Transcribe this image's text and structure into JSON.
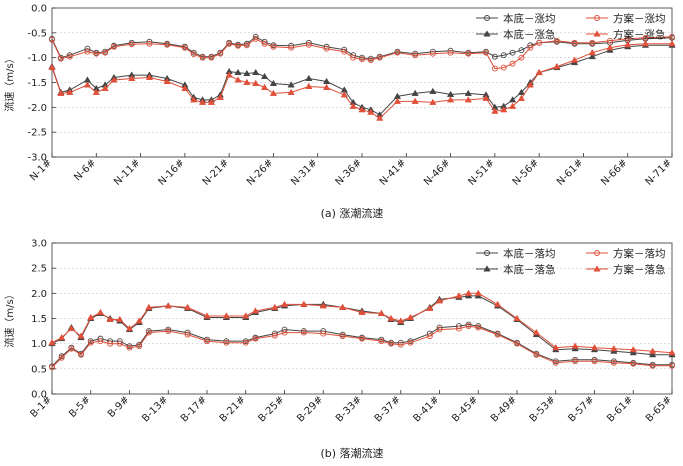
{
  "figures": [
    {
      "chart_data": {
        "type": "line",
        "ylabel": "流速（m/s）",
        "ylim": [
          -3.0,
          0.0
        ],
        "yticks": [
          "0.0",
          "-0.5",
          "-1.0",
          "-1.5",
          "-2.0",
          "-2.5",
          "-3.0"
        ],
        "ytick_values": [
          0.0,
          -0.5,
          -1.0,
          -1.5,
          -2.0,
          -2.5,
          -3.0
        ],
        "xlim": [
          1,
          71
        ],
        "x_tick_labels": [
          "N-1#",
          "N-6#",
          "N-11#",
          "N-16#",
          "N-21#",
          "N-26#",
          "N-31#",
          "N-36#",
          "N-41#",
          "N-46#",
          "N-51#",
          "N-56#",
          "N-61#",
          "N-66#",
          "N-71#"
        ],
        "x_tick_positions": [
          1,
          6,
          11,
          16,
          21,
          26,
          31,
          36,
          41,
          46,
          51,
          56,
          61,
          66,
          71
        ],
        "caption": "(a)  涨潮流速",
        "legend": {
          "position": "top-right",
          "columns": 2
        },
        "grid": true,
        "series": [
          {
            "name": "本底－涨均",
            "color": "#444444",
            "marker": "circle",
            "x": [
              1,
              2,
              3,
              5,
              6,
              7,
              8,
              10,
              12,
              14,
              16,
              17,
              18,
              19,
              20,
              21,
              22,
              23,
              24,
              25,
              26,
              28,
              30,
              32,
              34,
              35,
              36,
              37,
              38,
              40,
              42,
              44,
              46,
              48,
              50,
              51,
              52,
              53,
              54,
              55,
              56,
              58,
              60,
              62,
              64,
              66,
              68,
              71
            ],
            "y": [
              -0.62,
              -1.0,
              -0.95,
              -0.82,
              -0.9,
              -0.88,
              -0.76,
              -0.7,
              -0.68,
              -0.72,
              -0.78,
              -0.9,
              -0.98,
              -0.98,
              -0.9,
              -0.7,
              -0.74,
              -0.72,
              -0.58,
              -0.68,
              -0.75,
              -0.76,
              -0.7,
              -0.78,
              -0.84,
              -0.95,
              -1.0,
              -1.02,
              -0.98,
              -0.88,
              -0.92,
              -0.88,
              -0.86,
              -0.9,
              -0.88,
              -0.98,
              -0.95,
              -0.9,
              -0.85,
              -0.75,
              -0.7,
              -0.68,
              -0.72,
              -0.72,
              -0.7,
              -0.65,
              -0.62,
              -0.6
            ]
          },
          {
            "name": "本底－涨急",
            "color": "#444444",
            "marker": "triangle",
            "x": [
              1,
              2,
              3,
              5,
              6,
              7,
              8,
              10,
              12,
              14,
              16,
              17,
              18,
              19,
              20,
              21,
              22,
              23,
              24,
              25,
              26,
              28,
              30,
              32,
              34,
              35,
              36,
              37,
              38,
              40,
              42,
              44,
              46,
              48,
              50,
              51,
              52,
              53,
              54,
              55,
              56,
              58,
              60,
              62,
              64,
              66,
              68,
              71
            ],
            "y": [
              -1.18,
              -1.7,
              -1.65,
              -1.45,
              -1.62,
              -1.55,
              -1.4,
              -1.35,
              -1.35,
              -1.42,
              -1.55,
              -1.8,
              -1.85,
              -1.85,
              -1.75,
              -1.28,
              -1.3,
              -1.32,
              -1.3,
              -1.38,
              -1.52,
              -1.55,
              -1.42,
              -1.48,
              -1.65,
              -1.9,
              -2.0,
              -2.05,
              -2.15,
              -1.78,
              -1.72,
              -1.68,
              -1.74,
              -1.72,
              -1.75,
              -2.0,
              -1.98,
              -1.85,
              -1.7,
              -1.5,
              -1.3,
              -1.2,
              -1.1,
              -0.98,
              -0.85,
              -0.78,
              -0.75,
              -0.75
            ]
          },
          {
            "name": "方案－涨均",
            "color": "#e0503a",
            "marker": "circle",
            "x": [
              1,
              2,
              3,
              5,
              6,
              7,
              8,
              10,
              12,
              14,
              16,
              17,
              18,
              19,
              20,
              21,
              22,
              23,
              24,
              25,
              26,
              28,
              30,
              32,
              34,
              35,
              36,
              37,
              38,
              40,
              42,
              44,
              46,
              48,
              50,
              51,
              52,
              53,
              54,
              55,
              56,
              58,
              60,
              62,
              64,
              66,
              68,
              71
            ],
            "y": [
              -0.64,
              -1.02,
              -0.98,
              -0.88,
              -0.92,
              -0.9,
              -0.78,
              -0.73,
              -0.72,
              -0.74,
              -0.8,
              -0.93,
              -1.0,
              -1.0,
              -0.92,
              -0.72,
              -0.76,
              -0.75,
              -0.62,
              -0.72,
              -0.78,
              -0.8,
              -0.74,
              -0.82,
              -0.88,
              -1.0,
              -1.03,
              -1.05,
              -1.0,
              -0.9,
              -0.95,
              -0.92,
              -0.9,
              -0.92,
              -0.9,
              -1.22,
              -1.2,
              -1.12,
              -1.0,
              -0.8,
              -0.7,
              -0.66,
              -0.7,
              -0.7,
              -0.66,
              -0.62,
              -0.6,
              -0.58
            ]
          },
          {
            "name": "方案－涨急",
            "color": "#e0503a",
            "marker": "triangle",
            "x": [
              1,
              2,
              3,
              5,
              6,
              7,
              8,
              10,
              12,
              14,
              16,
              17,
              18,
              19,
              20,
              21,
              22,
              23,
              24,
              25,
              26,
              28,
              30,
              32,
              34,
              35,
              36,
              37,
              38,
              40,
              42,
              44,
              46,
              48,
              50,
              51,
              52,
              53,
              54,
              55,
              56,
              58,
              60,
              62,
              64,
              66,
              68,
              71
            ],
            "y": [
              -1.2,
              -1.72,
              -1.7,
              -1.55,
              -1.7,
              -1.62,
              -1.45,
              -1.42,
              -1.4,
              -1.48,
              -1.62,
              -1.85,
              -1.9,
              -1.9,
              -1.8,
              -1.35,
              -1.45,
              -1.5,
              -1.52,
              -1.6,
              -1.72,
              -1.7,
              -1.58,
              -1.6,
              -1.75,
              -1.98,
              -2.05,
              -2.1,
              -2.22,
              -1.88,
              -1.88,
              -1.9,
              -1.85,
              -1.85,
              -1.82,
              -2.08,
              -2.05,
              -1.98,
              -1.82,
              -1.55,
              -1.3,
              -1.18,
              -1.05,
              -0.9,
              -0.8,
              -0.74,
              -0.72,
              -0.72
            ]
          }
        ]
      }
    },
    {
      "chart_data": {
        "type": "line",
        "ylabel": "流速（m/s）",
        "ylim": [
          0.0,
          3.0
        ],
        "yticks": [
          "0.0",
          "0.5",
          "1.0",
          "1.5",
          "2.0",
          "2.5",
          "3.0"
        ],
        "ytick_values": [
          0.0,
          0.5,
          1.0,
          1.5,
          2.0,
          2.5,
          3.0
        ],
        "xlim": [
          1,
          65
        ],
        "x_tick_labels": [
          "B-1#",
          "B-5#",
          "B-9#",
          "B-13#",
          "B-17#",
          "B-21#",
          "B-25#",
          "B-29#",
          "B-33#",
          "B-37#",
          "B-41#",
          "B-45#",
          "B-49#",
          "B-53#",
          "B-57#",
          "B-61#",
          "B-65#"
        ],
        "x_tick_positions": [
          1,
          5,
          9,
          13,
          17,
          21,
          25,
          29,
          33,
          37,
          41,
          45,
          49,
          53,
          57,
          61,
          65
        ],
        "caption": "(b)  落潮流速",
        "legend": {
          "position": "top-right",
          "columns": 2
        },
        "grid": true,
        "series": [
          {
            "name": "本底－落均",
            "color": "#444444",
            "marker": "circle",
            "x": [
              1,
              2,
              3,
              4,
              5,
              6,
              7,
              8,
              9,
              10,
              11,
              13,
              15,
              17,
              19,
              21,
              22,
              24,
              25,
              27,
              29,
              31,
              33,
              35,
              36,
              37,
              38,
              40,
              41,
              43,
              44,
              45,
              47,
              49,
              51,
              53,
              55,
              57,
              59,
              61,
              63,
              65
            ],
            "y": [
              0.55,
              0.75,
              0.92,
              0.8,
              1.05,
              1.1,
              1.05,
              1.05,
              0.95,
              0.98,
              1.25,
              1.28,
              1.22,
              1.08,
              1.05,
              1.05,
              1.12,
              1.2,
              1.28,
              1.25,
              1.25,
              1.18,
              1.12,
              1.08,
              1.02,
              1.02,
              1.05,
              1.2,
              1.32,
              1.35,
              1.38,
              1.35,
              1.2,
              1.02,
              0.8,
              0.65,
              0.68,
              0.68,
              0.65,
              0.62,
              0.58,
              0.58
            ]
          },
          {
            "name": "本底－落急",
            "color": "#444444",
            "marker": "triangle",
            "x": [
              1,
              2,
              3,
              4,
              5,
              6,
              7,
              8,
              9,
              10,
              11,
              13,
              15,
              17,
              19,
              21,
              22,
              24,
              25,
              27,
              29,
              31,
              33,
              35,
              36,
              37,
              38,
              40,
              41,
              43,
              44,
              45,
              47,
              49,
              51,
              53,
              55,
              57,
              59,
              61,
              63,
              65
            ],
            "y": [
              1.0,
              1.1,
              1.32,
              1.12,
              1.5,
              1.6,
              1.5,
              1.45,
              1.28,
              1.42,
              1.7,
              1.75,
              1.7,
              1.52,
              1.52,
              1.52,
              1.62,
              1.7,
              1.75,
              1.78,
              1.78,
              1.72,
              1.65,
              1.6,
              1.48,
              1.42,
              1.5,
              1.72,
              1.88,
              1.92,
              1.95,
              1.95,
              1.75,
              1.48,
              1.18,
              0.88,
              0.9,
              0.88,
              0.85,
              0.82,
              0.78,
              0.78
            ]
          },
          {
            "name": "方案－落均",
            "color": "#e0503a",
            "marker": "circle",
            "x": [
              1,
              2,
              3,
              4,
              5,
              6,
              7,
              8,
              9,
              10,
              11,
              13,
              15,
              17,
              19,
              21,
              22,
              24,
              25,
              27,
              29,
              31,
              33,
              35,
              36,
              37,
              38,
              40,
              41,
              43,
              44,
              45,
              47,
              49,
              51,
              53,
              55,
              57,
              59,
              61,
              63,
              65
            ],
            "y": [
              0.53,
              0.72,
              0.9,
              0.78,
              1.02,
              1.05,
              1.0,
              1.0,
              0.92,
              0.95,
              1.22,
              1.25,
              1.18,
              1.05,
              1.02,
              1.02,
              1.1,
              1.16,
              1.22,
              1.22,
              1.2,
              1.15,
              1.1,
              1.05,
              1.0,
              0.98,
              1.02,
              1.15,
              1.28,
              1.3,
              1.35,
              1.32,
              1.18,
              1.0,
              0.78,
              0.62,
              0.65,
              0.65,
              0.62,
              0.6,
              0.56,
              0.56
            ]
          },
          {
            "name": "方案－落急",
            "color": "#e0503a",
            "marker": "triangle",
            "x": [
              1,
              2,
              3,
              4,
              5,
              6,
              7,
              8,
              9,
              10,
              11,
              13,
              15,
              17,
              19,
              21,
              22,
              24,
              25,
              27,
              29,
              31,
              33,
              35,
              36,
              37,
              38,
              40,
              41,
              43,
              44,
              45,
              47,
              49,
              51,
              53,
              55,
              57,
              59,
              61,
              63,
              65
            ],
            "y": [
              1.02,
              1.12,
              1.3,
              1.15,
              1.52,
              1.62,
              1.48,
              1.48,
              1.3,
              1.45,
              1.72,
              1.75,
              1.72,
              1.55,
              1.55,
              1.55,
              1.65,
              1.72,
              1.78,
              1.78,
              1.75,
              1.72,
              1.62,
              1.6,
              1.5,
              1.45,
              1.52,
              1.7,
              1.85,
              1.95,
              2.0,
              2.0,
              1.78,
              1.5,
              1.22,
              0.92,
              0.95,
              0.92,
              0.9,
              0.88,
              0.85,
              0.82
            ]
          }
        ]
      }
    }
  ]
}
